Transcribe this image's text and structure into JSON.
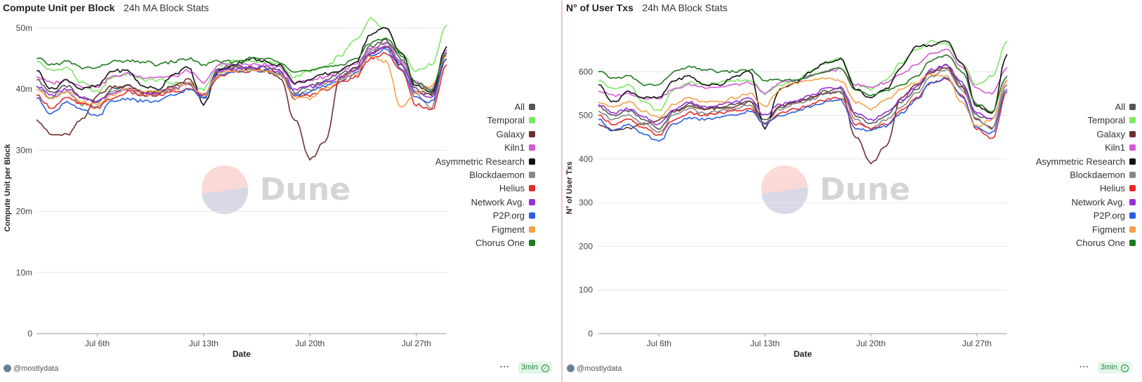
{
  "charts": [
    {
      "title": "Compute Unit per Block",
      "subtitle": "24h MA Block Stats",
      "author": "@mostlydata",
      "refresh": "3min",
      "watermark": "Dune",
      "chart_data": {
        "type": "line",
        "xlabel": "Date",
        "ylabel": "Compute Unit per Block",
        "ylim": [
          0,
          50000000
        ],
        "yticks": [
          0,
          10000000,
          20000000,
          30000000,
          40000000,
          50000000
        ],
        "ytick_labels": [
          "0",
          "10m",
          "20m",
          "30m",
          "40m",
          "50m"
        ],
        "xticks": [
          "Jul 6th",
          "Jul 13th",
          "Jul 20th",
          "Jul 27th"
        ],
        "x": [
          "Jul 2",
          "Jul 3",
          "Jul 4",
          "Jul 5",
          "Jul 6",
          "Jul 7",
          "Jul 8",
          "Jul 9",
          "Jul 10",
          "Jul 11",
          "Jul 12",
          "Jul 13",
          "Jul 14",
          "Jul 15",
          "Jul 16",
          "Jul 17",
          "Jul 18",
          "Jul 19",
          "Jul 20",
          "Jul 21",
          "Jul 22",
          "Jul 23",
          "Jul 24",
          "Jul 25",
          "Jul 26",
          "Jul 27",
          "Jul 28",
          "Jul 29"
        ],
        "legend_position": "right",
        "grid": true,
        "series": [
          {
            "name": "All",
            "color": "#555555",
            "values": [
              41.5,
              39.5,
              40.5,
              38.5,
              38.0,
              40.0,
              40.5,
              39.5,
              39.5,
              40.5,
              41.0,
              39.0,
              43.5,
              44.0,
              43.5,
              43.5,
              43.0,
              39.5,
              40.5,
              41.5,
              42.5,
              43.5,
              47.0,
              48.0,
              45.0,
              40.0,
              39.0,
              46.0
            ]
          },
          {
            "name": "Temporal",
            "color": "#7ee865",
            "values": [
              44.5,
              43.0,
              43.5,
              41.0,
              39.5,
              42.0,
              42.5,
              41.5,
              41.5,
              41.0,
              41.0,
              40.0,
              44.0,
              44.5,
              44.5,
              44.5,
              44.0,
              42.0,
              43.0,
              43.5,
              45.5,
              48.0,
              51.5,
              50.0,
              46.0,
              43.0,
              44.0,
              50.5
            ]
          },
          {
            "name": "Galaxy",
            "color": "#6e3131",
            "values": [
              35.0,
              32.5,
              32.5,
              35.0,
              39.0,
              40.5,
              40.5,
              39.5,
              39.5,
              40.5,
              41.5,
              38.5,
              43.0,
              43.5,
              43.5,
              43.0,
              42.0,
              35.0,
              28.5,
              31.5,
              42.0,
              43.5,
              46.0,
              47.0,
              44.0,
              39.5,
              39.0,
              45.5
            ]
          },
          {
            "name": "Kiln1",
            "color": "#d55ad8",
            "values": [
              42.0,
              41.0,
              41.5,
              40.5,
              40.5,
              42.0,
              42.5,
              42.0,
              42.0,
              42.0,
              43.0,
              41.0,
              44.0,
              44.0,
              44.0,
              44.0,
              43.5,
              41.0,
              41.5,
              42.0,
              43.0,
              44.0,
              46.5,
              47.5,
              44.5,
              41.0,
              40.0,
              46.5
            ]
          },
          {
            "name": "Asymmetric Research",
            "color": "#111111",
            "values": [
              43.0,
              40.0,
              41.5,
              40.0,
              40.5,
              43.0,
              43.0,
              40.5,
              40.0,
              42.5,
              43.5,
              37.5,
              43.0,
              44.0,
              45.0,
              44.5,
              44.0,
              41.0,
              41.5,
              42.5,
              43.0,
              44.5,
              49.0,
              50.0,
              46.0,
              40.5,
              39.5,
              47.0
            ]
          },
          {
            "name": "Blockdaemon",
            "color": "#888888",
            "values": [
              40.5,
              38.5,
              39.5,
              37.5,
              37.0,
              39.5,
              40.0,
              39.0,
              39.0,
              40.0,
              41.0,
              38.5,
              43.0,
              43.5,
              43.5,
              43.0,
              42.5,
              39.0,
              40.0,
              41.0,
              42.0,
              43.0,
              46.5,
              47.5,
              44.5,
              39.0,
              37.0,
              45.5
            ]
          },
          {
            "name": "Helius",
            "color": "#e52a2a",
            "values": [
              39.0,
              37.0,
              38.5,
              37.5,
              37.0,
              38.5,
              39.5,
              39.0,
              39.0,
              39.5,
              40.0,
              39.0,
              42.0,
              43.0,
              43.0,
              43.0,
              42.5,
              38.5,
              39.0,
              40.0,
              41.0,
              42.0,
              45.0,
              46.0,
              43.0,
              37.5,
              36.5,
              44.0
            ]
          },
          {
            "name": "Network Avg.",
            "color": "#9630d8",
            "values": [
              40.5,
              39.0,
              40.0,
              38.5,
              38.0,
              39.5,
              40.0,
              39.5,
              39.5,
              40.0,
              41.0,
              39.0,
              43.0,
              43.5,
              43.5,
              43.5,
              43.0,
              40.0,
              40.5,
              41.0,
              42.0,
              43.0,
              46.0,
              47.0,
              44.0,
              39.5,
              38.5,
              45.0
            ]
          },
          {
            "name": "P2P.org",
            "color": "#2a5fe0",
            "values": [
              38.5,
              36.0,
              38.0,
              36.5,
              35.5,
              38.0,
              38.5,
              38.0,
              38.0,
              39.0,
              40.0,
              38.5,
              42.5,
              43.0,
              43.0,
              43.0,
              42.5,
              39.0,
              39.5,
              40.5,
              41.5,
              42.5,
              45.5,
              46.5,
              43.5,
              38.5,
              38.0,
              45.0
            ]
          },
          {
            "name": "Figment",
            "color": "#f7a048",
            "values": [
              40.0,
              38.5,
              39.5,
              38.0,
              37.5,
              39.0,
              40.0,
              39.5,
              39.5,
              40.0,
              41.0,
              39.0,
              42.5,
              43.0,
              43.0,
              43.0,
              42.5,
              38.5,
              38.5,
              40.0,
              41.5,
              42.5,
              45.5,
              44.5,
              37.0,
              39.5,
              40.5,
              45.5
            ]
          },
          {
            "name": "Chorus One",
            "color": "#1f7a1f",
            "values": [
              45.0,
              44.0,
              44.5,
              43.5,
              43.5,
              44.5,
              44.5,
              44.5,
              44.0,
              44.5,
              45.0,
              44.0,
              44.5,
              44.5,
              45.0,
              45.0,
              44.5,
              43.0,
              43.0,
              43.5,
              44.0,
              45.0,
              47.5,
              48.5,
              45.5,
              41.0,
              40.0,
              46.0
            ]
          }
        ]
      }
    },
    {
      "title": "N° of User Txs",
      "subtitle": "24h MA Block Stats",
      "author": "@mostlydata",
      "refresh": "3min",
      "watermark": "Dune",
      "chart_data": {
        "type": "line",
        "xlabel": "Date",
        "ylabel": "N° of User Txs",
        "ylim": [
          0,
          700
        ],
        "yticks": [
          0,
          100,
          200,
          300,
          400,
          500,
          600
        ],
        "ytick_labels": [
          "0",
          "100",
          "200",
          "300",
          "400",
          "500",
          "600"
        ],
        "xticks": [
          "Jul 6th",
          "Jul 13th",
          "Jul 20th",
          "Jul 27th"
        ],
        "x": [
          "Jul 2",
          "Jul 3",
          "Jul 4",
          "Jul 5",
          "Jul 6",
          "Jul 7",
          "Jul 8",
          "Jul 9",
          "Jul 10",
          "Jul 11",
          "Jul 12",
          "Jul 13",
          "Jul 14",
          "Jul 15",
          "Jul 16",
          "Jul 17",
          "Jul 18",
          "Jul 19",
          "Jul 20",
          "Jul 21",
          "Jul 22",
          "Jul 23",
          "Jul 24",
          "Jul 25",
          "Jul 26",
          "Jul 27",
          "Jul 28",
          "Jul 29"
        ],
        "legend_position": "right",
        "grid": true,
        "series": [
          {
            "name": "All",
            "color": "#555555",
            "values": [
              520,
              500,
              510,
              490,
              470,
              510,
              525,
              515,
              520,
              525,
              535,
              490,
              520,
              530,
              540,
              555,
              560,
              500,
              480,
              500,
              530,
              560,
              600,
              615,
              570,
              500,
              490,
              580
            ]
          },
          {
            "name": "Temporal",
            "color": "#7ee865",
            "values": [
              580,
              560,
              570,
              530,
              510,
              560,
              575,
              570,
              575,
              580,
              580,
              550,
              570,
              580,
              600,
              620,
              630,
              570,
              560,
              580,
              620,
              650,
              670,
              665,
              620,
              570,
              590,
              670
            ]
          },
          {
            "name": "Galaxy",
            "color": "#6e3131",
            "values": [
              480,
              465,
              470,
              480,
              490,
              510,
              520,
              515,
              515,
              520,
              530,
              480,
              520,
              530,
              540,
              550,
              555,
              450,
              390,
              430,
              540,
              570,
              600,
              610,
              565,
              490,
              470,
              570
            ]
          },
          {
            "name": "Kiln1",
            "color": "#d55ad8",
            "values": [
              555,
              545,
              550,
              540,
              540,
              560,
              570,
              565,
              565,
              570,
              575,
              550,
              575,
              580,
              590,
              600,
              605,
              570,
              565,
              575,
              595,
              615,
              640,
              650,
              610,
              560,
              550,
              610
            ]
          },
          {
            "name": "Asymmetric Research",
            "color": "#111111",
            "values": [
              570,
              530,
              555,
              540,
              540,
              580,
              590,
              570,
              570,
              590,
              600,
              470,
              560,
              575,
              600,
              620,
              630,
              560,
              540,
              560,
              610,
              660,
              660,
              670,
              620,
              520,
              505,
              640
            ]
          },
          {
            "name": "Blockdaemon",
            "color": "#888888",
            "values": [
              510,
              490,
              500,
              480,
              460,
              500,
              515,
              505,
              510,
              515,
              525,
              480,
              515,
              525,
              535,
              550,
              555,
              490,
              470,
              490,
              520,
              550,
              590,
              605,
              560,
              490,
              470,
              570
            ]
          },
          {
            "name": "Helius",
            "color": "#e52a2a",
            "values": [
              500,
              480,
              490,
              470,
              455,
              490,
              505,
              500,
              505,
              510,
              515,
              480,
              505,
              515,
              525,
              535,
              540,
              480,
              470,
              480,
              510,
              540,
              575,
              585,
              545,
              470,
              445,
              555
            ]
          },
          {
            "name": "Network Avg.",
            "color": "#9630d8",
            "values": [
              525,
              505,
              515,
              495,
              480,
              515,
              530,
              520,
              525,
              530,
              540,
              500,
              525,
              535,
              545,
              560,
              565,
              505,
              490,
              505,
              535,
              565,
              605,
              615,
              575,
              505,
              490,
              580
            ]
          },
          {
            "name": "P2P.org",
            "color": "#2a5fe0",
            "values": [
              490,
              465,
              480,
              455,
              440,
              480,
              495,
              490,
              495,
              500,
              510,
              480,
              500,
              510,
              520,
              530,
              535,
              470,
              465,
              475,
              505,
              535,
              575,
              585,
              545,
              470,
              460,
              560
            ]
          },
          {
            "name": "Figment",
            "color": "#f7a048",
            "values": [
              530,
              520,
              530,
              510,
              495,
              525,
              540,
              530,
              530,
              540,
              550,
              520,
              560,
              575,
              580,
              585,
              580,
              530,
              515,
              535,
              560,
              575,
              595,
              590,
              530,
              475,
              490,
              580
            ]
          },
          {
            "name": "Chorus One",
            "color": "#1f7a1f",
            "values": [
              600,
              585,
              590,
              570,
              570,
              600,
              610,
              605,
              600,
              600,
              605,
              580,
              580,
              580,
              590,
              600,
              610,
              560,
              545,
              555,
              570,
              590,
              625,
              640,
              600,
              525,
              510,
              590
            ]
          }
        ]
      }
    }
  ]
}
